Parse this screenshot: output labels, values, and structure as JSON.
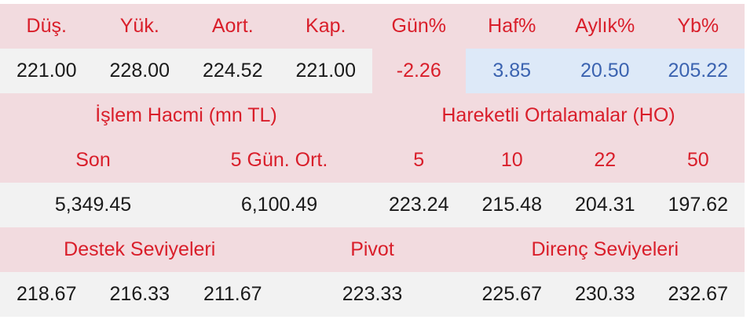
{
  "price_headers": [
    "Düş.",
    "Yük.",
    "Aort.",
    "Kap.",
    "Gün%",
    "Haf%",
    "Aylık%",
    "Yb%"
  ],
  "price_values": [
    "221.00",
    "228.00",
    "224.52",
    "221.00",
    "-2.26",
    "3.85",
    "20.50",
    "205.22"
  ],
  "volume": {
    "title": "İşlem Hacmi (mn TL)",
    "headers": [
      "Son",
      "5 Gün. Ort."
    ],
    "values": [
      "5,349.45",
      "6,100.49"
    ]
  },
  "moving_averages": {
    "title": "Hareketli Ortalamalar (HO)",
    "headers": [
      "5",
      "10",
      "22",
      "50"
    ],
    "values": [
      "223.24",
      "215.48",
      "204.31",
      "197.62"
    ]
  },
  "levels": {
    "support_title": "Destek Seviyeleri",
    "support": [
      "218.67",
      "216.33",
      "211.67"
    ],
    "pivot_title": "Pivot",
    "pivot": "223.33",
    "resistance_title": "Direnç Seviyeleri",
    "resistance": [
      "225.67",
      "230.33",
      "232.67"
    ]
  },
  "colors": {
    "header_bg": "#f2dbdf",
    "header_text": "#d91e2a",
    "value_bg": "#f2f2f2",
    "positive_bg": "#dde9f8",
    "positive_text": "#3b63b0",
    "negative_text": "#d91e2a"
  }
}
